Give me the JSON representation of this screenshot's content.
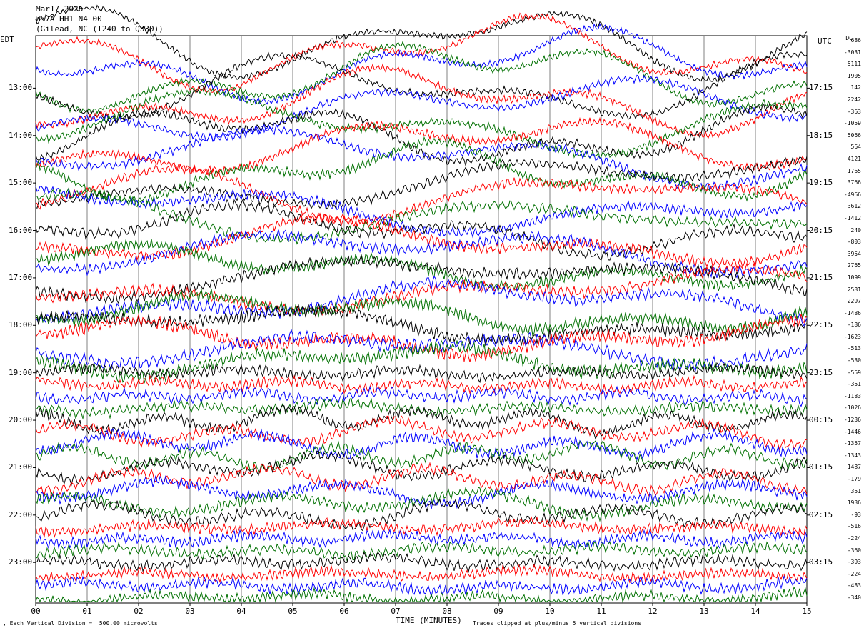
{
  "header": {
    "date": "Mar17,2026",
    "station": "W57A HH1 N4 00",
    "location": "(Gilead, NC (T240 to Q330))"
  },
  "left_label": "EDT",
  "right_label": "UTC",
  "dc_label": "DC",
  "footer": {
    "scale": "Each Vertical Division =  500.00 microvolts",
    "clip": "Traces clipped at plus/minus 5 vertical divisions",
    "xlabel": "TIME (MINUTES)"
  },
  "chart_data": {
    "type": "line",
    "title": "",
    "xlabel": "TIME (MINUTES)",
    "xlim": [
      0,
      15
    ],
    "x_ticks": [
      "00",
      "01",
      "02",
      "03",
      "04",
      "05",
      "06",
      "07",
      "08",
      "09",
      "10",
      "11",
      "12",
      "13",
      "14",
      "15"
    ],
    "edt_hours": [
      "13:00",
      "14:00",
      "15:00",
      "16:00",
      "17:00",
      "18:00",
      "19:00",
      "20:00",
      "21:00",
      "22:00",
      "23:00"
    ],
    "utc_hours": [
      "17:15",
      "18:15",
      "19:15",
      "20:15",
      "21:15",
      "22:15",
      "23:15",
      "00:15",
      "01:15",
      "02:15",
      "03:15"
    ],
    "trace_colors": [
      "#000000",
      "#ff0000",
      "#0000ff",
      "#007000"
    ],
    "dc_offsets": [
      "686",
      "-3031",
      "5111",
      "1905",
      "142",
      "2242",
      "-363",
      "-1059",
      "5066",
      "564",
      "4121",
      "1765",
      "3766",
      "-4966",
      "3612",
      "-1412",
      "240",
      "-803",
      "3954",
      "2765",
      "1099",
      "2581",
      "2297",
      "-1486",
      "-186",
      "-1623",
      "-513",
      "-530",
      "-559",
      "-351",
      "-1183",
      "-1026",
      "-1236",
      "-1446",
      "-1357",
      "-1343",
      "1487",
      "-179",
      "351",
      "1936",
      "-93",
      "-516",
      "-224",
      "-360",
      "-393",
      "-224",
      "-483",
      "-340"
    ]
  }
}
